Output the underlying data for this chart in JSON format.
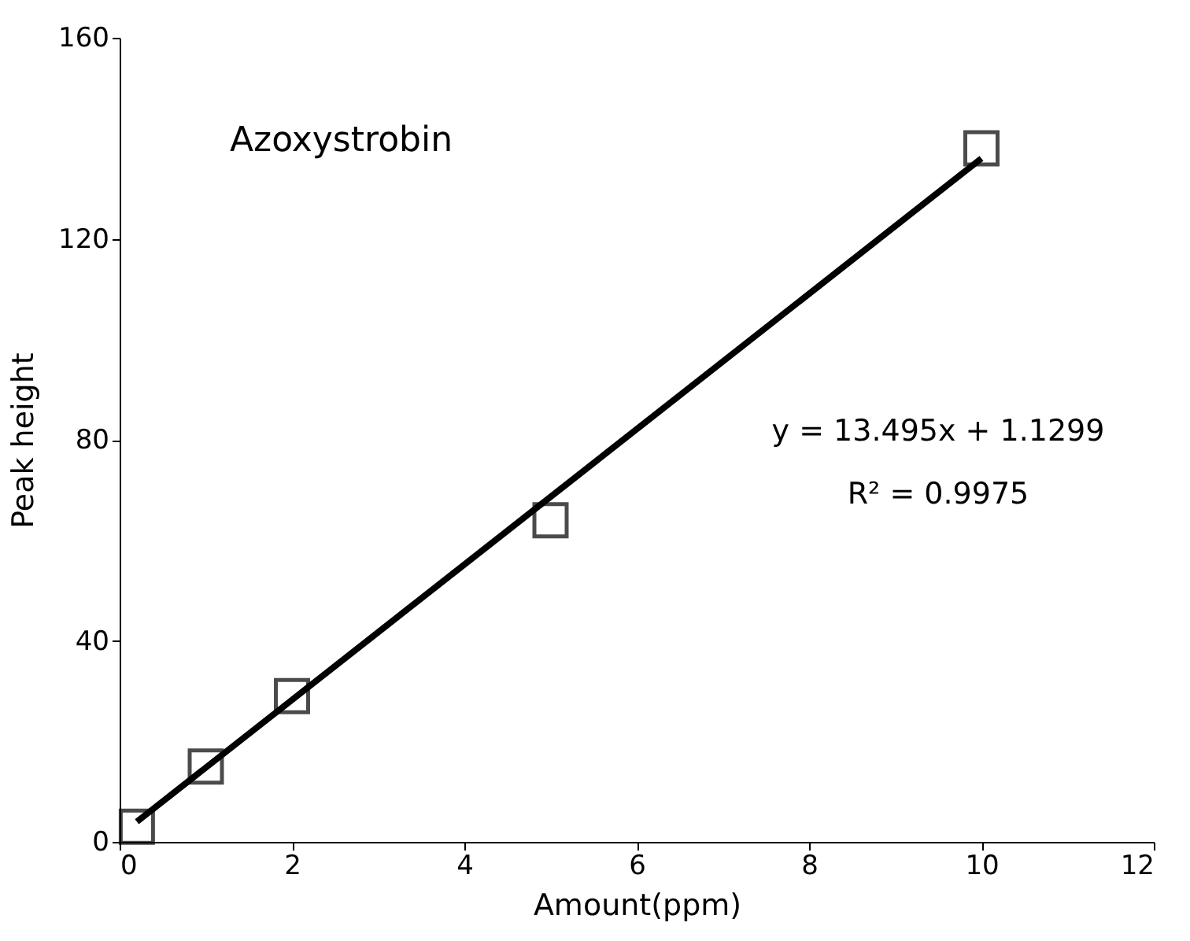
{
  "chart_data": {
    "type": "scatter",
    "xlabel": "Amount(ppm)",
    "ylabel": "Peak height",
    "annotations": [
      "Azoxystrobin",
      "y = 13.495x  + 1.1299",
      "R² = 0.9975"
    ],
    "series": [
      {
        "x": [
          0.2,
          1,
          2,
          5,
          10
        ],
        "values": [
          3,
          15,
          29,
          64,
          138
        ],
        "color": "#000000",
        "marker": "square"
      },
      {
        "type": "line",
        "x": [
          0.2,
          10
        ],
        "values": [
          4,
          136
        ],
        "color": "#000000",
        "line_style": "solid"
      }
    ],
    "xlim": [
      0,
      12
    ],
    "xticks": [
      0,
      2,
      4,
      6,
      8,
      10,
      12
    ],
    "ylim": [
      0,
      160
    ],
    "yticks": [
      0,
      40,
      80,
      120,
      160
    ],
    "grid": false
  }
}
